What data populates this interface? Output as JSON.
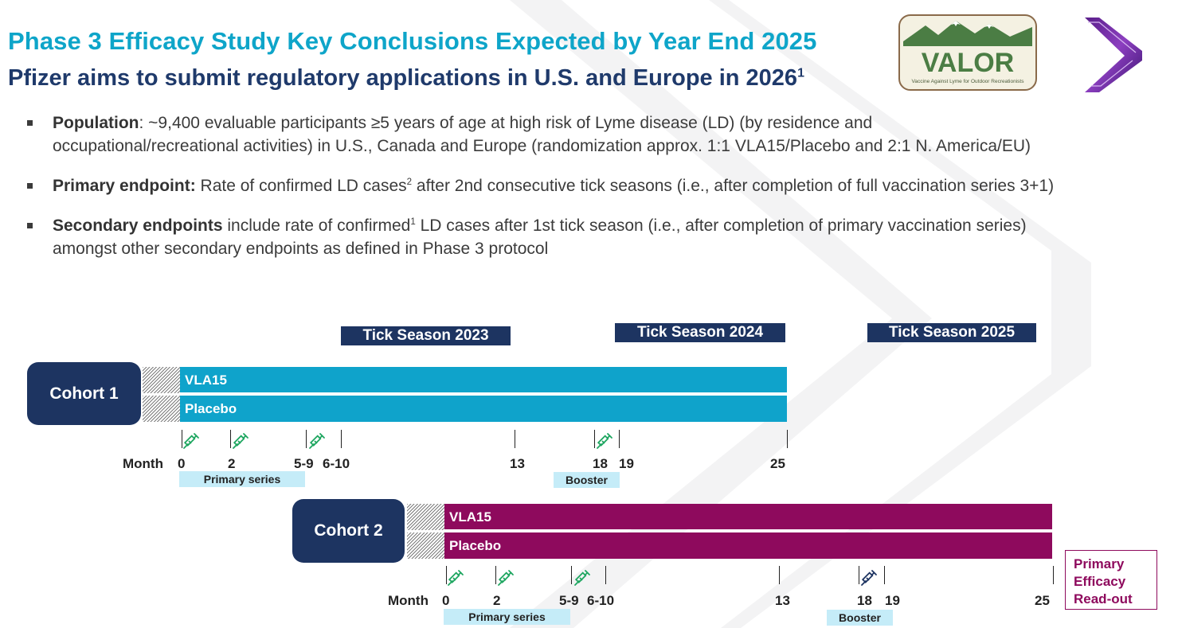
{
  "title": "Phase 3 Efficacy Study Key Conclusions Expected by Year End 2025",
  "subtitle": {
    "text": "Pfizer aims to submit regulatory applications in U.S. and Europe in 2026",
    "sup": "1"
  },
  "logo": {
    "name": "VALOR",
    "tagline": "Vaccine Against Lyme for Outdoor Recreationists"
  },
  "bullets": [
    {
      "label": "Population",
      "text": ": ~9,400 evaluable participants ≥5 years of age at high risk of Lyme disease (LD) (by residence and occupational/recreational activities) in U.S., Canada and Europe (randomization approx. 1:1 VLA15/Placebo and 2:1 N. America/EU)"
    },
    {
      "label": "Primary endpoint:",
      "text_before": " Rate of confirmed LD cases",
      "sup": "2",
      "text_after": " after 2nd consecutive tick seasons (i.e., after completion of full vaccination series 3+1)"
    },
    {
      "label": "Secondary endpoints",
      "text_before": " include rate of confirmed",
      "sup": "1",
      "text_after": " LD cases after 1st tick season (i.e., after completion of primary vaccination series) amongst other secondary endpoints as defined in Phase 3 protocol"
    }
  ],
  "seasons": [
    "Tick Season 2023",
    "Tick Season 2024",
    "Tick Season 2025"
  ],
  "cohorts": [
    {
      "label": "Cohort 1",
      "arms": [
        "VLA15",
        "Placebo"
      ],
      "month_label": "Month",
      "months": [
        "0",
        "2",
        "5-9",
        "6-10",
        "13",
        "18",
        "19",
        "25"
      ],
      "primary_series": "Primary series",
      "booster": "Booster"
    },
    {
      "label": "Cohort 2",
      "arms": [
        "VLA15",
        "Placebo"
      ],
      "month_label": "Month",
      "months": [
        "0",
        "2",
        "5-9",
        "6-10",
        "13",
        "18",
        "19",
        "25"
      ],
      "primary_series": "Primary series",
      "booster": "Booster"
    }
  ],
  "readout": [
    "Primary",
    "Efficacy",
    "Read-out"
  ],
  "colors": {
    "title": "#0ea5c9",
    "navy": "#1d3461",
    "cohort1": "#0fa3cb",
    "cohort2": "#8e0a5d",
    "syringe_green": "#1ea660",
    "syringe_navy": "#1d3461",
    "series_bg": "#c5ecf8"
  },
  "icons": [
    "syringe-icon",
    "tick-icon",
    "mountain-icon",
    "chevron-logo-icon"
  ]
}
